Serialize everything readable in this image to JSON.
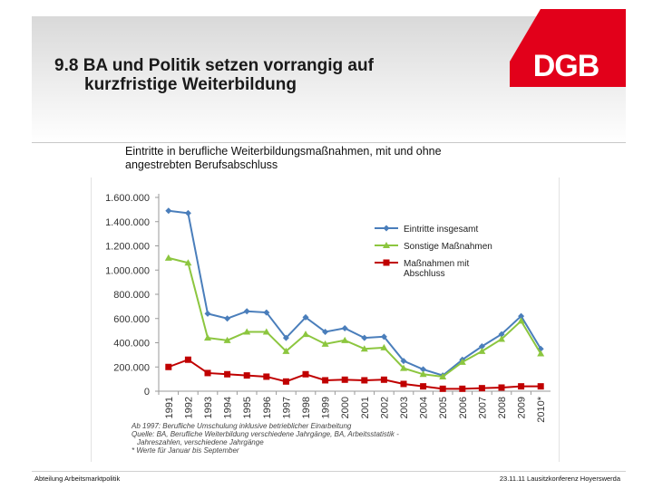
{
  "slide": {
    "title_line1": "9.8  BA und Politik setzen vorrangig auf",
    "title_line2": "kurzfristige Weiterbildung",
    "logo_text": "DGB",
    "subtitle_part1": "Eintritte in berufliche Weiterbildungsmaßnahmen",
    "subtitle_part2": ", mit und ohne angestrebten Berufsabschluss",
    "footer_left": "Abteilung Arbeitsmarktpolitik",
    "footer_right": "23.11.11 Lausitzkonferenz Hoyerswerda",
    "brand_color": "#e2001a"
  },
  "notes": [
    "Ab 1997: Berufliche Umschulung inklusive betrieblicher Einarbeitung",
    "Quelle: BA, Berufliche Weiterbildung verschiedene Jahrgänge, BA, Arbeitsstatistik -",
    "Jahreszahlen, verschiedene Jahrgänge",
    "* Werte für Januar bis September"
  ],
  "chart_data": {
    "type": "line",
    "categories": [
      "1991",
      "1992",
      "1993",
      "1994",
      "1995",
      "1996",
      "1997",
      "1998",
      "1999",
      "2000",
      "2001",
      "2002",
      "2003",
      "2004",
      "2005",
      "2006",
      "2007",
      "2008",
      "2009",
      "2010*"
    ],
    "ylim": [
      0,
      1600000
    ],
    "yticks": [
      0,
      200000,
      400000,
      600000,
      800000,
      1000000,
      1200000,
      1400000,
      1600000
    ],
    "ytick_labels": [
      "0",
      "200.000",
      "400.000",
      "600.000",
      "800.000",
      "1.000.000",
      "1.200.000",
      "1.400.000",
      "1.600.000"
    ],
    "grid": false,
    "legend_position": "right",
    "series": [
      {
        "name": "Eintritte insgesamt",
        "color": "#4a7ebb",
        "marker": "diamond",
        "values": [
          1490000,
          1470000,
          640000,
          600000,
          660000,
          650000,
          440000,
          610000,
          490000,
          520000,
          440000,
          450000,
          250000,
          180000,
          130000,
          260000,
          370000,
          470000,
          620000,
          350000
        ]
      },
      {
        "name": "Sonstige Maßnahmen",
        "color": "#8cc63f",
        "marker": "triangle",
        "values": [
          1100000,
          1060000,
          440000,
          420000,
          490000,
          490000,
          330000,
          470000,
          390000,
          420000,
          350000,
          360000,
          190000,
          140000,
          120000,
          240000,
          330000,
          430000,
          580000,
          310000
        ]
      },
      {
        "name": "Maßnahmen mit Abschluss",
        "color": "#c00000",
        "marker": "square",
        "values": [
          200000,
          260000,
          150000,
          140000,
          130000,
          120000,
          80000,
          140000,
          90000,
          95000,
          90000,
          95000,
          60000,
          40000,
          20000,
          20000,
          25000,
          30000,
          40000,
          40000
        ]
      }
    ]
  }
}
